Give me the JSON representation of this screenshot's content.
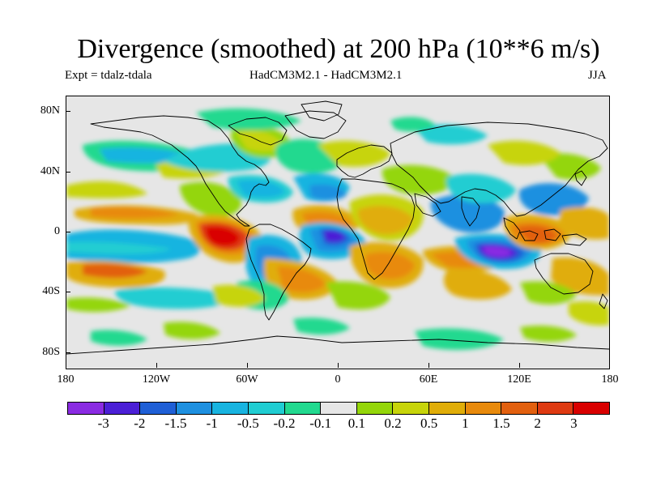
{
  "chart": {
    "title": "Divergence (smoothed) at 200 hPa (10**6 m/s)",
    "experiment": "Expt = tdalz-tdala",
    "models": "HadCM3M2.1 - HadCM3M2.1",
    "season": "JJA"
  },
  "chart_data": {
    "type": "heatmap",
    "title": "Divergence (smoothed) at 200 hPa (10**6 m/s)",
    "variable": "Divergence (smoothed) at 200 hPa",
    "units": "10**6 m/s",
    "experiment": "tdalz-tdala",
    "models": "HadCM3M2.1 - HadCM3M2.1",
    "season": "JJA",
    "xaxis": {
      "range": [
        -180,
        180
      ],
      "ticks": [
        -180,
        -120,
        -60,
        0,
        60,
        120,
        180
      ],
      "tick_labels": [
        "180",
        "120W",
        "60W",
        "0",
        "60E",
        "120E",
        "180"
      ]
    },
    "yaxis": {
      "range": [
        -90,
        90
      ],
      "ticks": [
        80,
        40,
        0,
        -40,
        -80
      ],
      "tick_labels": [
        "80N",
        "40N",
        "0",
        "40S",
        "80S"
      ]
    },
    "colorbar": {
      "levels": [
        "-3",
        "-2",
        "-1.5",
        "-1",
        "-0.5",
        "-0.2",
        "-0.1",
        "0.1",
        "0.2",
        "0.5",
        "1",
        "1.5",
        "2",
        "3"
      ],
      "colors": [
        "#8a2be2",
        "#4b1fd6",
        "#1f5fd6",
        "#1e90e0",
        "#18b4e0",
        "#20cdd2",
        "#22d98f",
        "#e6e6e6",
        "#94d60a",
        "#c7d40a",
        "#e0ad08",
        "#e88a0c",
        "#e2600f",
        "#de3a12",
        "#d90000"
      ]
    },
    "notable_features": [
      {
        "sign": "positive",
        "lon": -82,
        "lat": 2,
        "value": 2.5
      },
      {
        "sign": "negative",
        "lon": -5,
        "lat": -2,
        "value": -2.5
      },
      {
        "sign": "negative",
        "lon": 100,
        "lat": -12,
        "value": -3.0
      },
      {
        "sign": "positive",
        "lon": 120,
        "lat": -5,
        "value": 1.5
      },
      {
        "sign": "positive",
        "lon": -165,
        "lat": -20,
        "value": 1.5
      }
    ]
  }
}
